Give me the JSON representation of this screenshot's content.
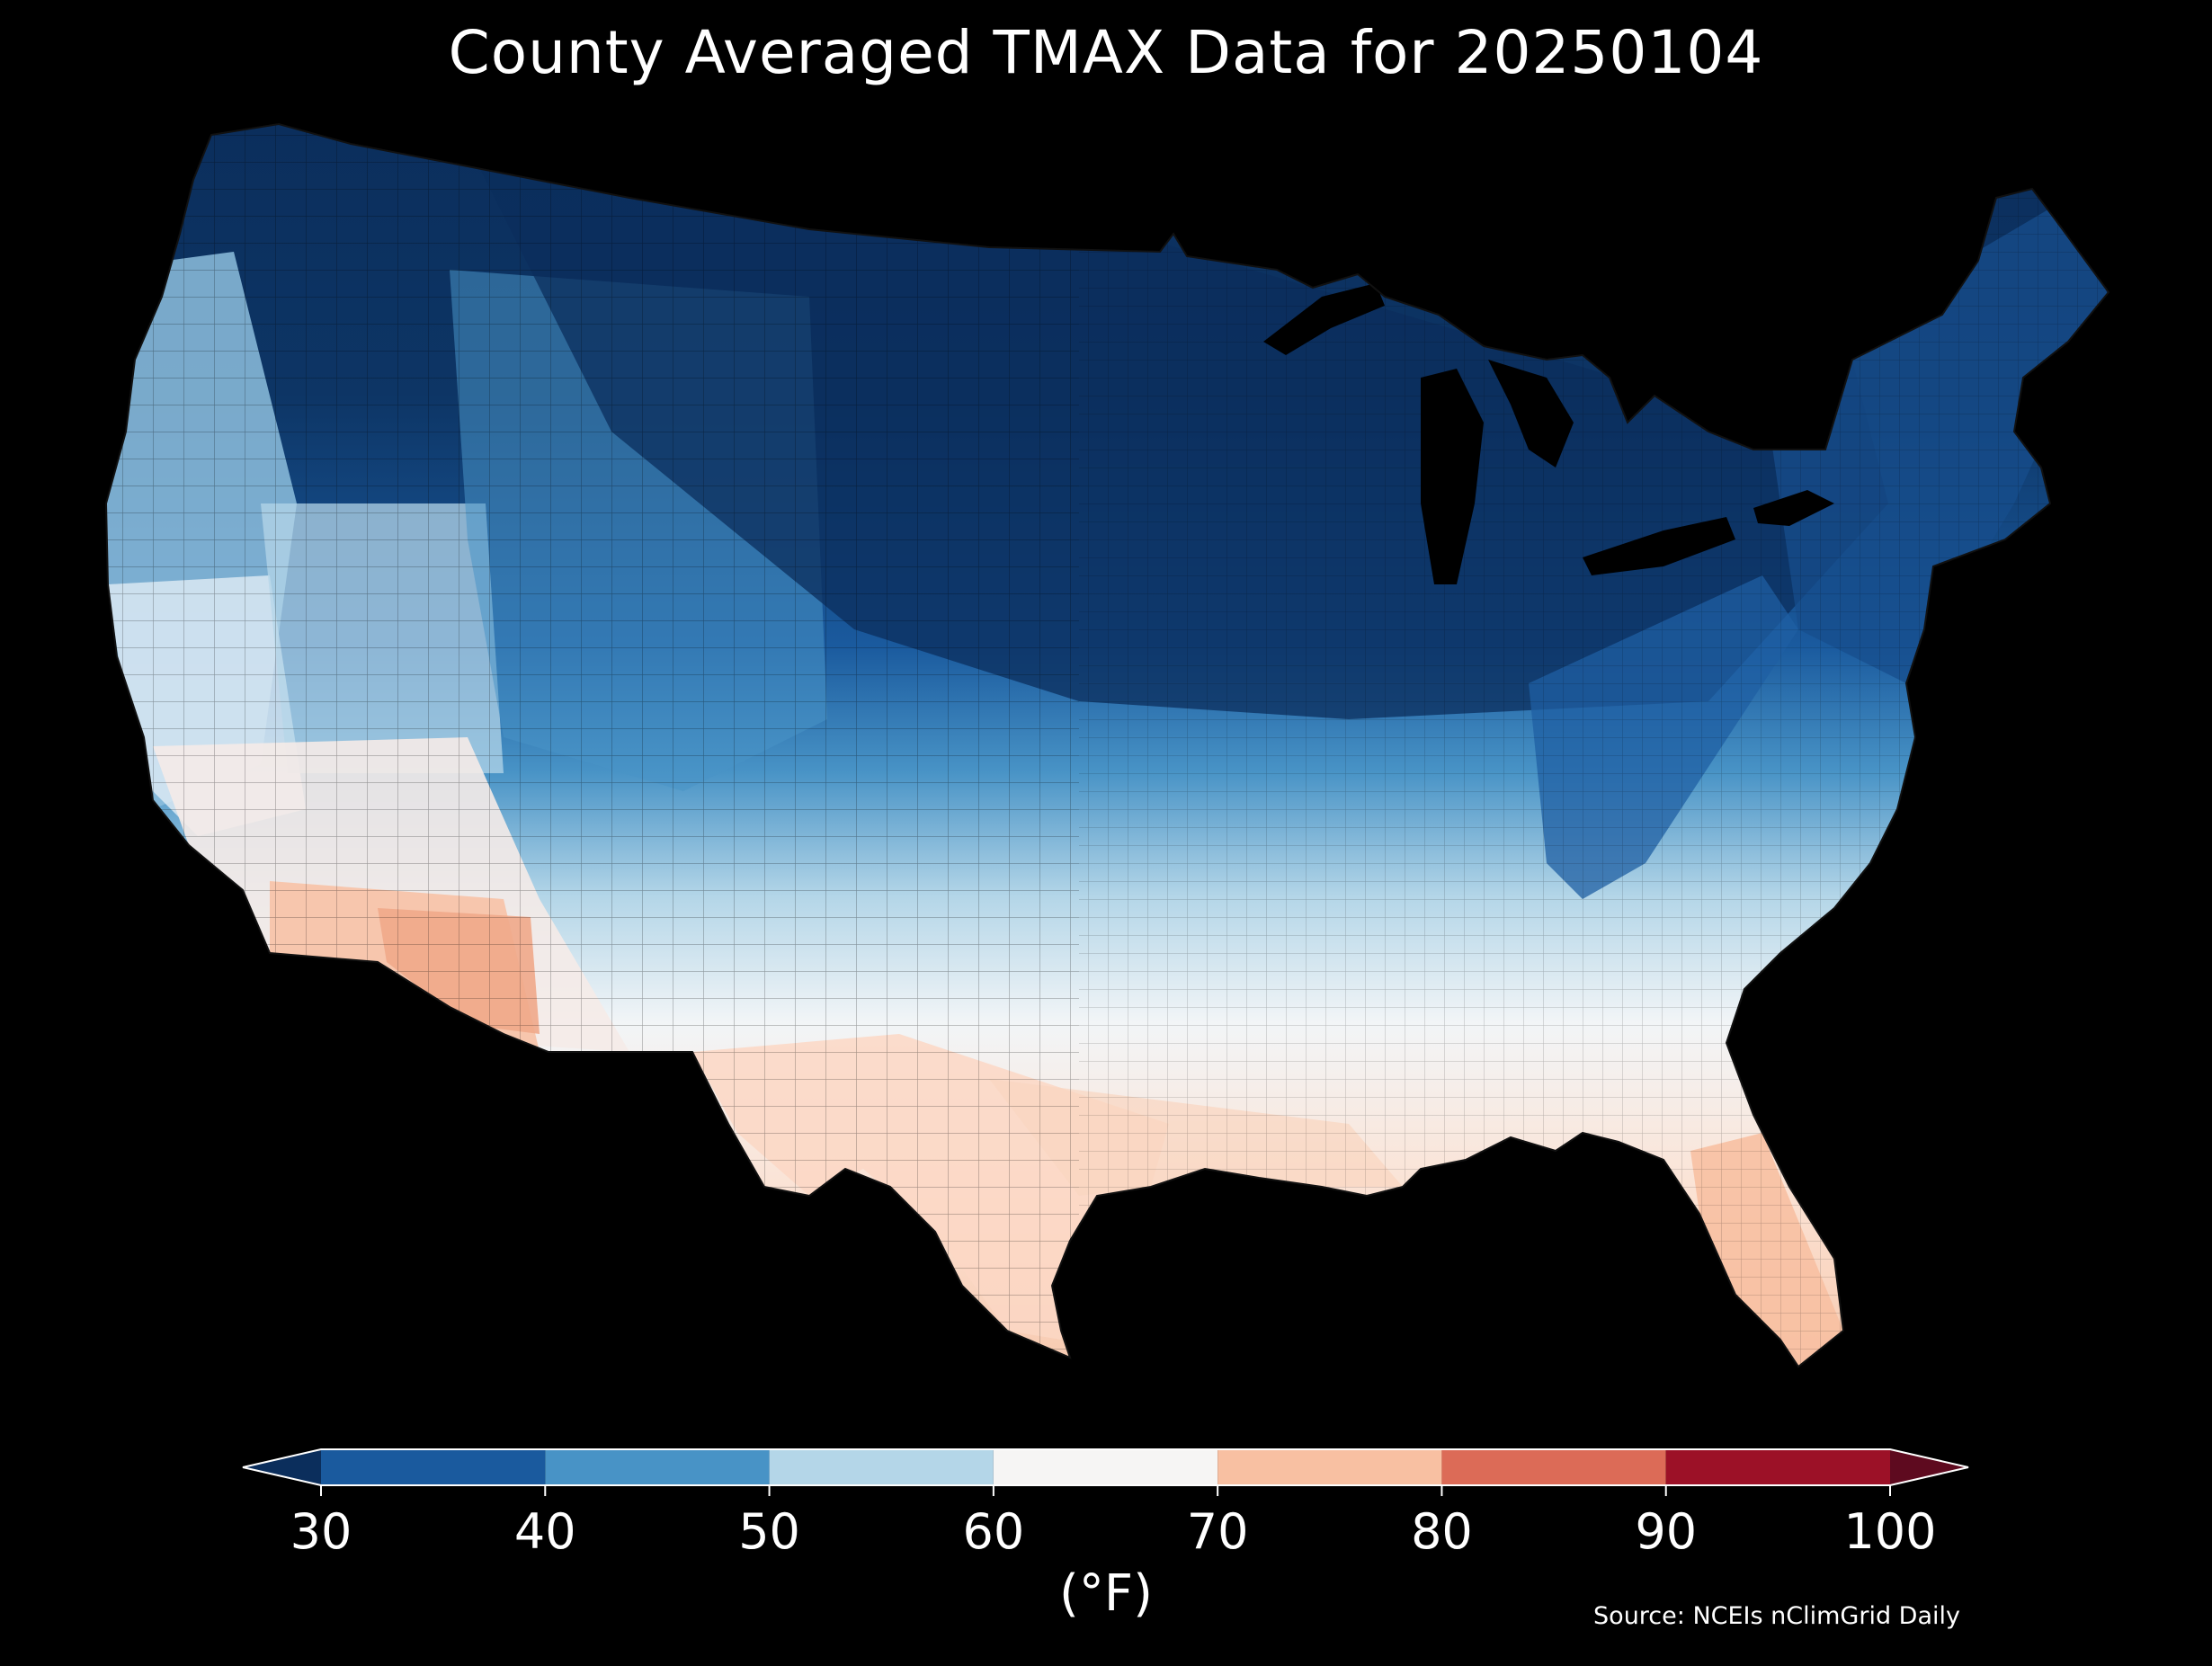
{
  "title": "County Averaged TMAX Data for 20250104",
  "colorbar": {
    "unit_label": "(°F)",
    "ticks": [
      "30",
      "40",
      "50",
      "60",
      "70",
      "80",
      "90",
      "100"
    ],
    "bins": [
      {
        "range": [
          30,
          40
        ],
        "color": "#1a5a9e"
      },
      {
        "range": [
          40,
          50
        ],
        "color": "#4893c6"
      },
      {
        "range": [
          50,
          60
        ],
        "color": "#b4d6e8"
      },
      {
        "range": [
          60,
          70
        ],
        "color": "#f6f5f4"
      },
      {
        "range": [
          70,
          80
        ],
        "color": "#f8c0a2"
      },
      {
        "range": [
          80,
          90
        ],
        "color": "#dc6b57"
      },
      {
        "range": [
          90,
          100
        ],
        "color": "#9c1127"
      }
    ],
    "under_color": "#0b2e5c",
    "over_color": "#5e0a1f",
    "extend": "both"
  },
  "source": "Source: NCEIs nClimGrid Daily",
  "map": {
    "region": "Contiguous United States",
    "variable": "TMAX",
    "date": "20250104",
    "background_color": "#000000"
  }
}
